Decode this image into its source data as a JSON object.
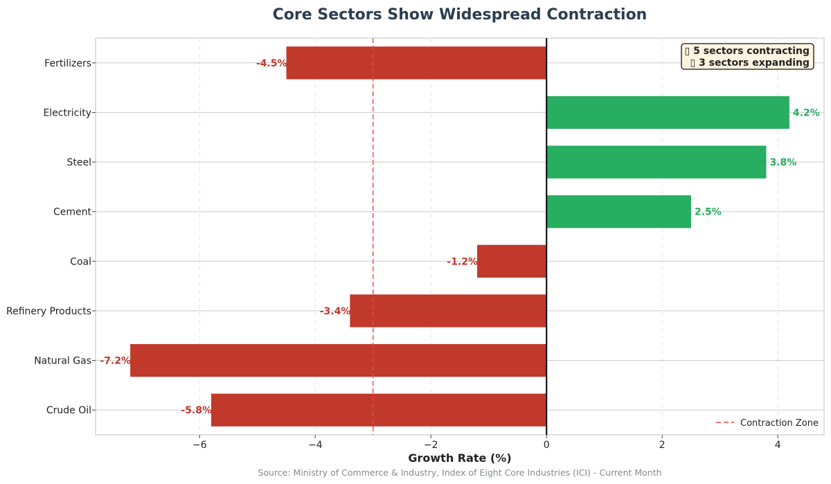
{
  "chart_data": {
    "type": "bar",
    "orientation": "horizontal",
    "title": "Core Sectors Show Widespread Contraction",
    "xlabel": "Growth Rate (%)",
    "ylabel": "",
    "source": "Source: Ministry of Commerce & Industry, Index of Eight Core Industries (ICI) - Current Month",
    "categories": [
      "Fertilizers",
      "Electricity",
      "Steel",
      "Cement",
      "Coal",
      "Refinery Products",
      "Natural Gas",
      "Crude Oil"
    ],
    "values": [
      -4.5,
      4.2,
      3.8,
      2.5,
      -1.2,
      -3.4,
      -7.2,
      -5.8
    ],
    "value_labels": [
      "-4.5%",
      "4.2%",
      "3.8%",
      "2.5%",
      "-1.2%",
      "-3.4%",
      "-7.2%",
      "-5.8%"
    ],
    "xlim": [
      -7.8,
      4.8
    ],
    "xticks": [
      -6,
      -4,
      -2,
      0,
      2,
      4
    ],
    "xtick_labels": [
      "−6",
      "−4",
      "−2",
      "0",
      "2",
      "4"
    ],
    "grid": true,
    "reference_line": {
      "x": -3,
      "label": "Contraction Zone",
      "color": "#e74c3c"
    },
    "annotation": {
      "lines": [
        "▯ 5 sectors contracting",
        "▯ 3 sectors expanding"
      ],
      "placement": "top-right"
    },
    "legend": {
      "placement": "bottom-right",
      "entries": [
        "Contraction Zone"
      ]
    },
    "colors": {
      "negative": "#c0392b",
      "positive": "#27ae60",
      "title": "#2c3e50",
      "source": "#7f8c8d",
      "annotation_bg": "#fdf3e1"
    }
  }
}
